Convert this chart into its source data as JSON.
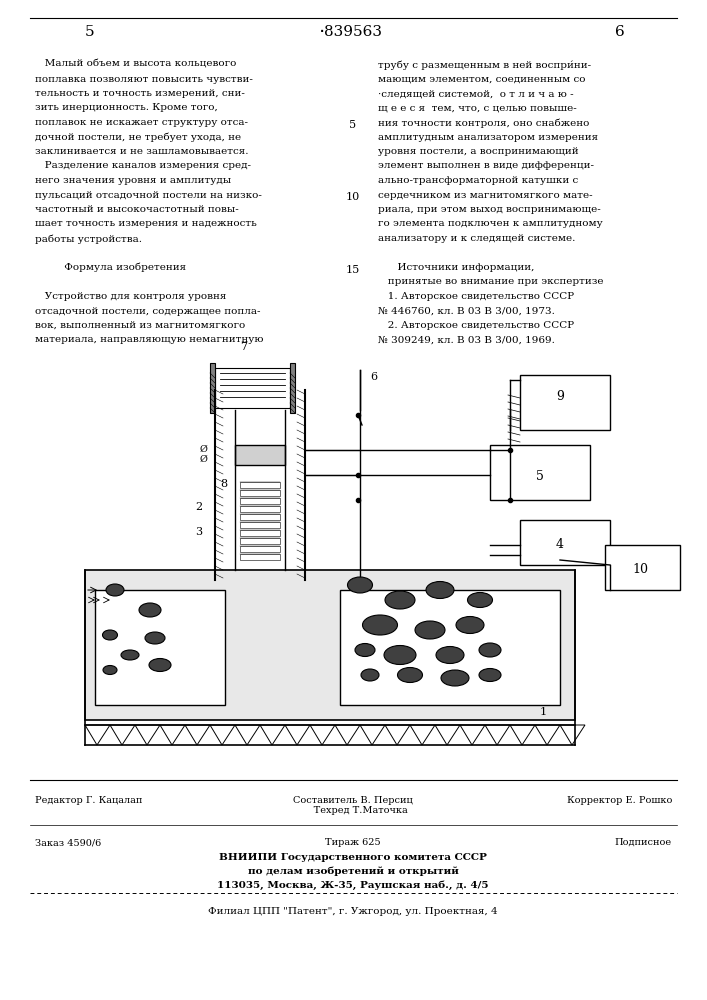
{
  "page_number_left": "5",
  "patent_number": "839563",
  "page_number_right": "6",
  "background_color": "#ffffff",
  "text_color": "#000000",
  "left_column_text": [
    "   Малый объем и высота кольцевого",
    "поплавка позволяют повысить чувстви-",
    "тельность и точность измерений, сни-",
    "зить инерционность. Кроме того,",
    "поплавок не искажает структуру отса-",
    "дочной постели, не требует ухода, не",
    "заклинивается и не зашламовывается.",
    "   Разделение каналов измерения сред-",
    "него значения уровня и амплитуды",
    "пульсаций отсадочной постели на низко-",
    "частотный и высокочастотный повы-",
    "шает точность измерения и надежность",
    "работы устройства.",
    "",
    "         Формула изобретения",
    "",
    "   Устройство для контроля уровня",
    "отсадочной постели, содержащее попла-",
    "вок, выполненный из магнитомягкого",
    "материала, направляющую немагнитную"
  ],
  "right_column_text": [
    "трубу с размещенным в ней воспри́ни-",
    "мающим элементом, соединенным со",
    "·следящей системой,  о т л и ч а ю -",
    "щ е е с я  тем, что, с целью повыше-",
    "ния точности контроля, оно снабжено",
    "амплитудным анализатором измерения",
    "уровня постели, а воспринимающий",
    "элемент выполнен в виде дифференци-",
    "ально-трансформаторной катушки с",
    "сердечником из магнитомягкого мате-",
    "риала, при этом выход воспринимающе-",
    "го элемента подключен к амплитудному",
    "анализатору и к следящей системе.",
    "",
    "      Источники информации,",
    "   принятые во внимание при экспертизе",
    "   1. Авторское свидетельство СССР",
    "№ 446760, кл. В 03 В 3/00, 1973.",
    "   2. Авторское свидетельство СССР",
    "№ 309249, кл. В 03 В 3/00, 1969."
  ],
  "line_number_5": "5",
  "line_number_10": "10",
  "line_number_15": "15",
  "footer_line1_left": "Редактор Г. Кацалап",
  "footer_line1_center": "Составитель В. Персиц\n     Техред Т.Маточка",
  "footer_line1_right": "Корректор Е. Рошко",
  "footer_line2_left": "Заказ 4590/6",
  "footer_line2_center": "Тираж 625",
  "footer_line2_right": "Подписное",
  "footer_line3": "ВНИИПИ Государственного комитета СССР",
  "footer_line4": "по делам изобретений и открытий",
  "footer_line5": "113035, Москва, Ж-35, Раушская наб., д. 4/5",
  "footer_line6": "Филиал ЦПП \"Патент\", г. Ужгород, ул. Проектная, 4"
}
